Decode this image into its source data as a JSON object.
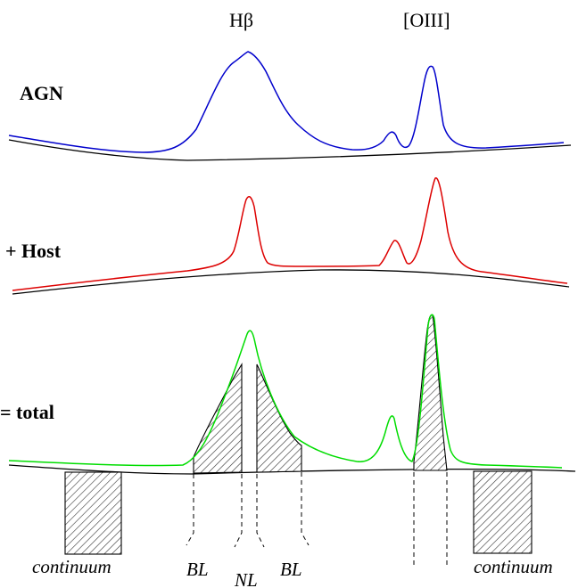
{
  "headers": {
    "hbeta": "Hβ",
    "oiii": "[OIII]"
  },
  "labels": {
    "agn": "AGN",
    "host": "+ Host",
    "total": "= total"
  },
  "windows": {
    "continuum_left": "continuum",
    "bl_left": "BL",
    "nl": "NL",
    "bl_right": "BL",
    "continuum_right": "continuum"
  },
  "colors": {
    "agn": "#0000cc",
    "host": "#dd0000",
    "total": "#00dd00",
    "baseline": "#000000",
    "hatch": "#333333"
  }
}
